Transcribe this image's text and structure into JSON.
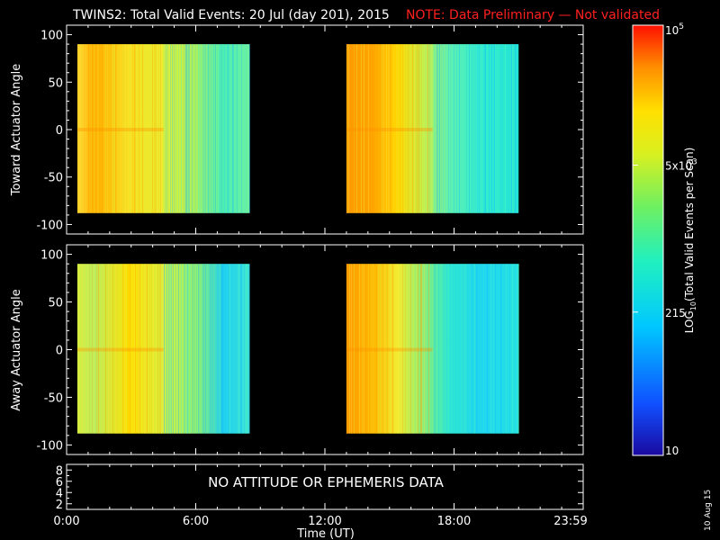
{
  "header": {
    "title": "TWINS2: Total Valid Events: 20 Jul (day 201), 2015",
    "note": "NOTE: Data Preliminary — Not validated"
  },
  "colors": {
    "background": "#000000",
    "axes": "#ffffff",
    "note": "#ff2020"
  },
  "colorbar": {
    "label": "LOG10(Total Valid Events per Scan)",
    "scale": "log",
    "range": [
      10,
      100000
    ],
    "ticks": [
      {
        "value": 100000,
        "label": "10^5"
      },
      {
        "value": 5000,
        "label": "5x10^3"
      },
      {
        "value": 215,
        "label": "215"
      },
      {
        "value": 10,
        "label": "10"
      }
    ],
    "colormap": "rainbow (blue → cyan → green → yellow → orange → red)"
  },
  "side_date": "10 Aug 15",
  "chart_data": [
    {
      "type": "heatmap",
      "ylabel": "Toward Actuator Angle",
      "ylim": [
        -110,
        110
      ],
      "yticks": [
        100,
        50,
        0,
        -50,
        -100
      ],
      "xlim": [
        0,
        24
      ],
      "x_unit": "hours UT",
      "data_blocks": [
        {
          "start": 0.5,
          "end": 8.5,
          "angle_range": [
            -88,
            90
          ],
          "trend": "yellow-orange fading to green-cyan"
        },
        {
          "start": 13.0,
          "end": 21.0,
          "angle_range": [
            -88,
            90
          ],
          "trend": "orange fading to cyan"
        }
      ]
    },
    {
      "type": "heatmap",
      "ylabel": "Away Actuator Angle",
      "ylim": [
        -110,
        110
      ],
      "yticks": [
        100,
        50,
        0,
        -50,
        -100
      ],
      "xlim": [
        0,
        24
      ],
      "x_unit": "hours UT",
      "data_blocks": [
        {
          "start": 0.5,
          "end": 8.5,
          "angle_range": [
            -88,
            90
          ],
          "trend": "yellow-green fading to cyan"
        },
        {
          "start": 13.0,
          "end": 21.0,
          "angle_range": [
            -88,
            90
          ],
          "trend": "orange fading to cyan"
        }
      ]
    },
    {
      "type": "line",
      "yticks": [
        8,
        6,
        4,
        2
      ],
      "ylim": [
        1,
        9
      ],
      "message": "NO ATTITUDE OR EPHEMERIS DATA",
      "xlabel": "Time (UT)",
      "xticks": [
        {
          "value": 0,
          "label": "0:00"
        },
        {
          "value": 6,
          "label": "6:00"
        },
        {
          "value": 12,
          "label": "12:00"
        },
        {
          "value": 18,
          "label": "18:00"
        },
        {
          "value": 23.983,
          "label": "23:59"
        }
      ]
    }
  ]
}
